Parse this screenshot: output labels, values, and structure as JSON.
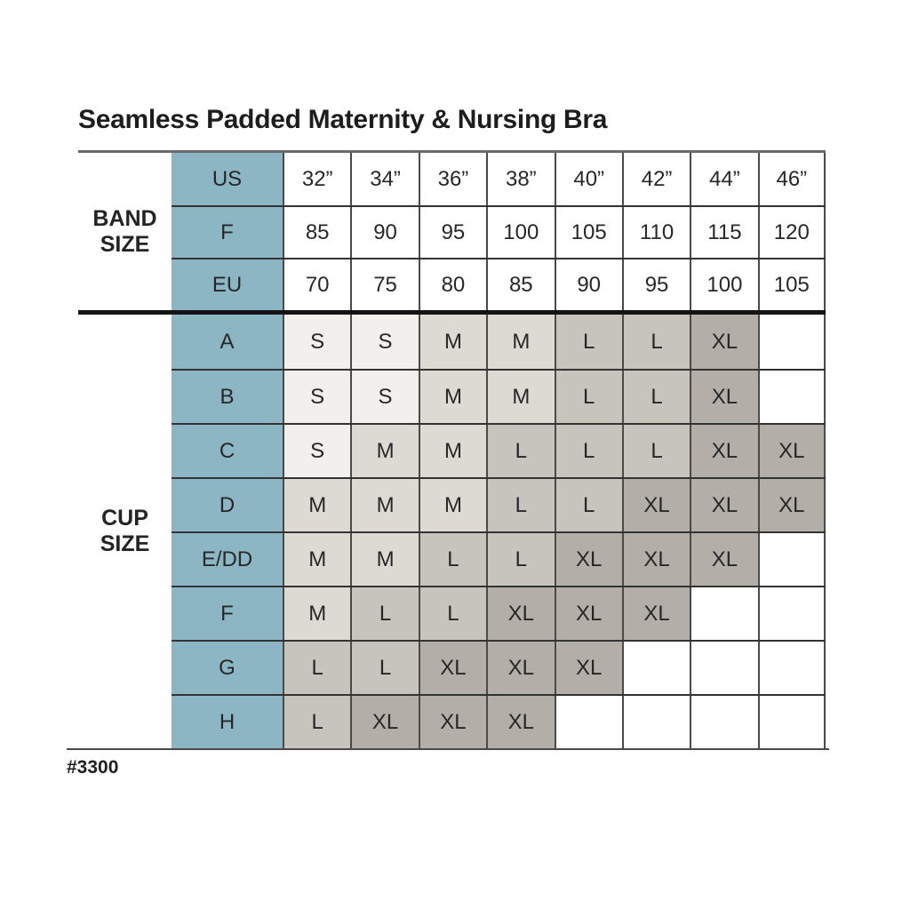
{
  "title": "Seamless Padded Maternity & Nursing Bra",
  "footer_item_number": "#3300",
  "band_section_label": "BAND SIZE",
  "cup_section_label": "CUP SIZE",
  "chart_data": {
    "type": "table",
    "title": "Seamless Padded Maternity & Nursing Bra",
    "sections": [
      {
        "name": "BAND SIZE",
        "rows": [
          {
            "header": "US",
            "values": [
              "32”",
              "34”",
              "36”",
              "38”",
              "40”",
              "42”",
              "44”",
              "46”"
            ]
          },
          {
            "header": "F",
            "values": [
              "85",
              "90",
              "95",
              "100",
              "105",
              "110",
              "115",
              "120"
            ]
          },
          {
            "header": "EU",
            "values": [
              "70",
              "75",
              "80",
              "85",
              "90",
              "95",
              "100",
              "105"
            ]
          }
        ]
      },
      {
        "name": "CUP SIZE",
        "rows": [
          {
            "header": "A",
            "values": [
              "S",
              "S",
              "M",
              "M",
              "L",
              "L",
              "XL",
              ""
            ]
          },
          {
            "header": "B",
            "values": [
              "S",
              "S",
              "M",
              "M",
              "L",
              "L",
              "XL",
              ""
            ]
          },
          {
            "header": "C",
            "values": [
              "S",
              "M",
              "M",
              "L",
              "L",
              "L",
              "XL",
              "XL"
            ]
          },
          {
            "header": "D",
            "values": [
              "M",
              "M",
              "M",
              "L",
              "L",
              "XL",
              "XL",
              "XL"
            ]
          },
          {
            "header": "E/DD",
            "values": [
              "M",
              "M",
              "L",
              "L",
              "XL",
              "XL",
              "XL",
              ""
            ]
          },
          {
            "header": "F",
            "values": [
              "M",
              "L",
              "L",
              "XL",
              "XL",
              "XL",
              "",
              ""
            ]
          },
          {
            "header": "G",
            "values": [
              "L",
              "L",
              "XL",
              "XL",
              "XL",
              "",
              "",
              ""
            ]
          },
          {
            "header": "H",
            "values": [
              "L",
              "XL",
              "XL",
              "XL",
              "",
              "",
              "",
              ""
            ]
          }
        ]
      }
    ],
    "cell_shades": {
      "S": "#f2f0ed",
      "M": "#ddd9d3",
      "L": "#c7c3bd",
      "XL": "#b3afa8",
      "empty": "#ffffff"
    },
    "header_column_color": "#8db6c5",
    "layout": {
      "grid": true,
      "legend": false
    }
  },
  "colors": {
    "teal_header": "#8db6c5",
    "grid_line": "#4a4a4a",
    "heavy_divider": "#141414",
    "text": "#272727"
  }
}
